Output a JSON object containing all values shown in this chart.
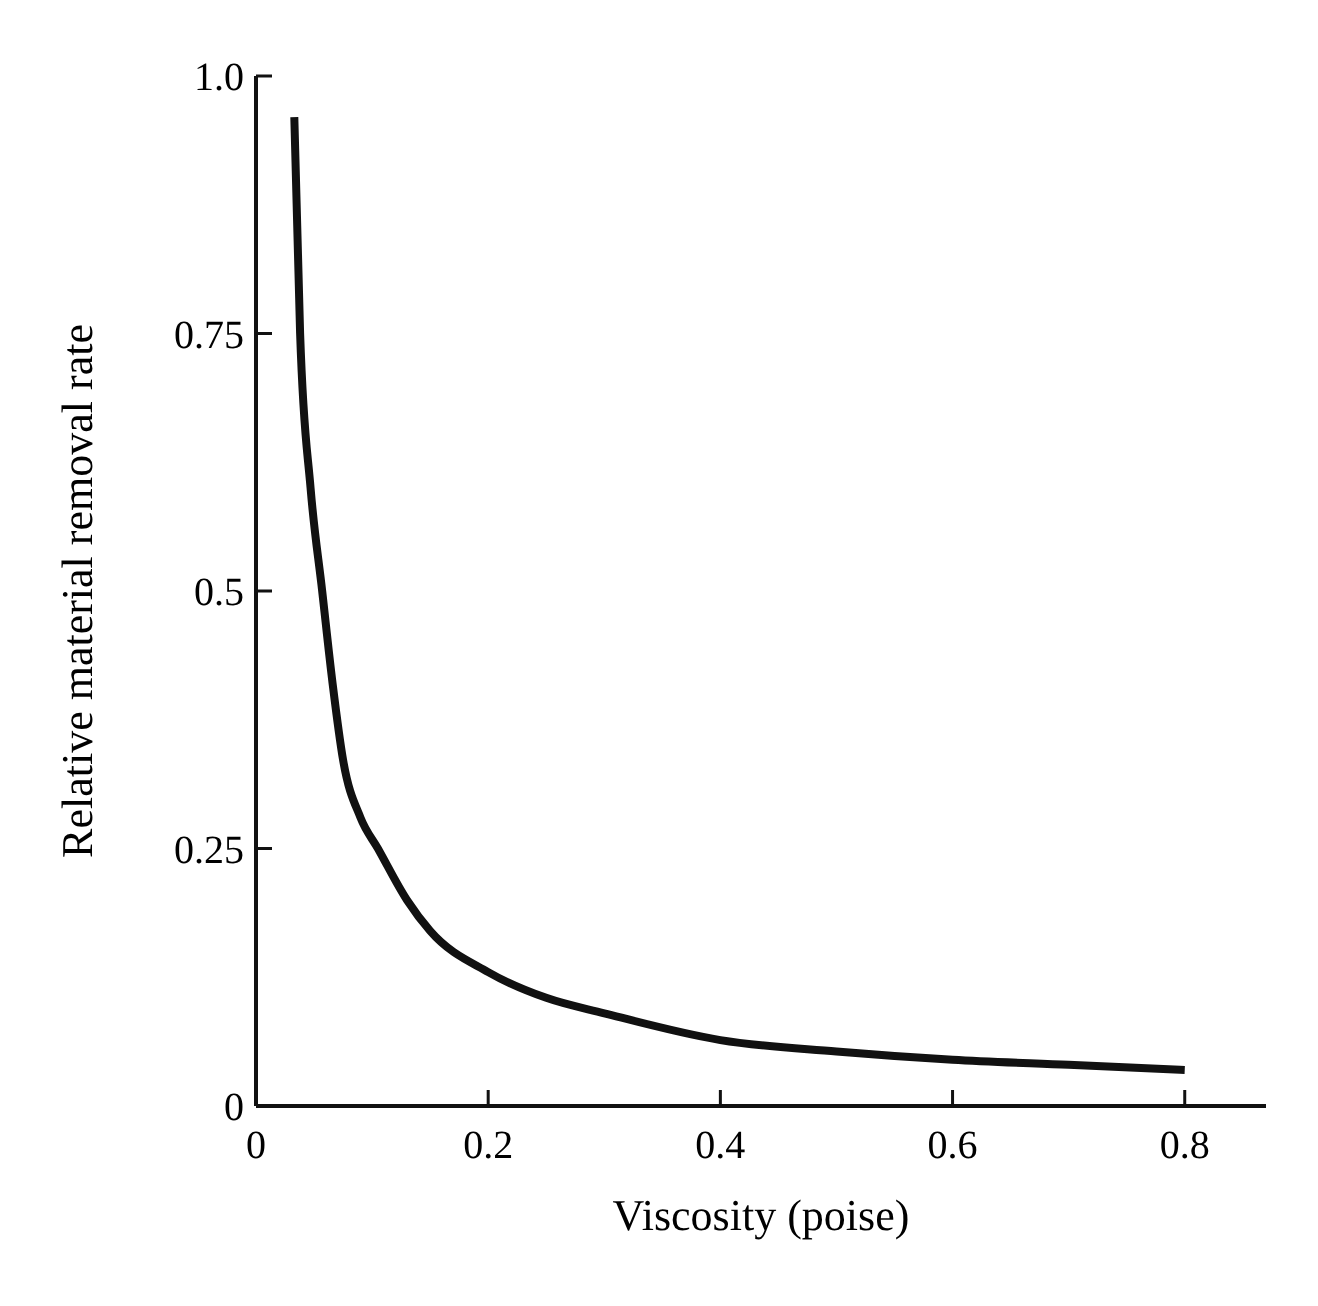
{
  "chart_data": {
    "type": "line",
    "xlabel": "Viscosity (poise)",
    "ylabel": "Relative material removal rate",
    "xlim": [
      0,
      0.87
    ],
    "xticks": [
      0,
      0.2,
      0.4,
      0.6,
      0.8
    ],
    "ylim": [
      0,
      1
    ],
    "yticks": [
      0,
      0.25,
      0.5,
      0.75,
      {
        "value": 1,
        "label": "1.0"
      }
    ],
    "grid": false,
    "marker": "none",
    "line_style": "solid",
    "series": [
      {
        "color": "#111111",
        "x": [
          0.033,
          0.038,
          0.047,
          0.057,
          0.066,
          0.075,
          0.09,
          0.105,
          0.13,
          0.15,
          0.2,
          0.25,
          0.3,
          0.4,
          0.5,
          0.6,
          0.7,
          0.8
        ],
        "values": [
          0.96,
          0.75,
          0.6,
          0.5,
          0.41,
          0.336,
          0.28,
          0.25,
          0.2,
          0.17,
          0.13,
          0.105,
          0.09,
          0.064,
          0.053,
          0.045,
          0.04,
          0.035
        ]
      }
    ]
  }
}
